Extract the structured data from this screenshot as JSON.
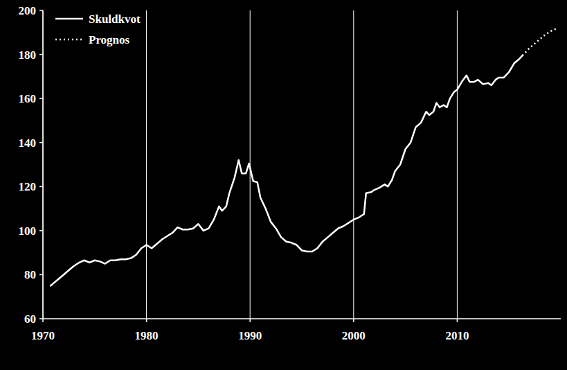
{
  "chart_data": {
    "type": "line",
    "x": [
      1970.75,
      1971,
      1971.5,
      1972,
      1972.5,
      1973,
      1973.5,
      1974,
      1974.5,
      1975,
      1975.5,
      1976,
      1976.5,
      1977,
      1977.5,
      1978,
      1978.5,
      1979,
      1979.5,
      1980,
      1980.5,
      1981,
      1981.5,
      1982,
      1982.5,
      1983,
      1983.5,
      1984,
      1984.5,
      1985,
      1985.5,
      1986,
      1986.5,
      1987,
      1987.3,
      1987.7,
      1988,
      1988.5,
      1988.9,
      1989.2,
      1989.6,
      1989.9,
      1990.3,
      1990.7,
      1991,
      1991.5,
      1992,
      1992.5,
      1993,
      1993.5,
      1994,
      1994.5,
      1995,
      1995.5,
      1996,
      1996.5,
      1997,
      1997.5,
      1998,
      1998.5,
      1999,
      1999.5,
      2000,
      2000.5,
      2001,
      2001.2,
      2001.7,
      2002,
      2002.5,
      2003,
      2003.3,
      2003.7,
      2004,
      2004.5,
      2005,
      2005.5,
      2006,
      2006.5,
      2007,
      2007.3,
      2007.7,
      2008,
      2008.3,
      2008.7,
      2009,
      2009.3,
      2009.7,
      2010,
      2010.5,
      2010.9,
      2011.2,
      2011.6,
      2012,
      2012.5,
      2013,
      2013.3,
      2013.7,
      2014,
      2014.5,
      2015,
      2015.5,
      2016,
      2016.3,
      2017,
      2017.5,
      2018,
      2018.5,
      2019,
      2019.7
    ],
    "series": [
      {
        "name": "Skuldkvot",
        "color": "#ffffff",
        "line_style": "solid",
        "values": [
          75,
          76,
          78,
          80,
          82,
          84,
          85.5,
          86.5,
          85.5,
          86.5,
          86,
          85,
          86.5,
          86.5,
          87,
          87,
          87.5,
          89,
          92,
          93.5,
          92,
          94,
          96,
          97.5,
          99,
          101.5,
          100.5,
          100.5,
          101,
          103,
          100,
          101,
          105,
          111,
          109,
          111,
          117,
          124,
          132,
          126,
          126,
          130.5,
          122.5,
          122,
          115,
          110,
          104,
          101,
          97,
          95,
          94.5,
          93.5,
          91,
          90.5,
          90.5,
          92,
          95,
          97,
          99,
          101,
          102,
          103.5,
          105,
          106,
          107.5,
          117,
          117.5,
          118.5,
          119.5,
          121,
          120,
          123,
          127,
          130,
          137,
          140,
          147,
          149,
          154,
          152.5,
          154,
          158,
          156,
          157,
          156,
          160,
          163,
          164,
          168,
          170.5,
          167.5,
          167.5,
          168.5,
          166.5,
          167,
          166,
          168.5,
          169.5,
          169.5,
          172,
          176,
          178,
          179.5,
          null,
          null,
          null,
          null,
          null,
          null
        ]
      },
      {
        "name": "Prognos",
        "color": "#ffffff",
        "line_style": "dotted",
        "values": [
          null,
          null,
          null,
          null,
          null,
          null,
          null,
          null,
          null,
          null,
          null,
          null,
          null,
          null,
          null,
          null,
          null,
          null,
          null,
          null,
          null,
          null,
          null,
          null,
          null,
          null,
          null,
          null,
          null,
          null,
          null,
          null,
          null,
          null,
          null,
          null,
          null,
          null,
          null,
          null,
          null,
          null,
          null,
          null,
          null,
          null,
          null,
          null,
          null,
          null,
          null,
          null,
          null,
          null,
          null,
          null,
          null,
          null,
          null,
          null,
          null,
          null,
          null,
          null,
          null,
          null,
          null,
          null,
          null,
          null,
          null,
          null,
          null,
          null,
          null,
          null,
          null,
          null,
          null,
          null,
          null,
          null,
          null,
          null,
          null,
          null,
          null,
          null,
          null,
          null,
          null,
          null,
          null,
          null,
          null,
          null,
          null,
          null,
          null,
          null,
          null,
          null,
          179.5,
          183,
          185,
          187,
          189,
          190.5,
          192
        ]
      }
    ],
    "xlim": [
      1970,
      2020
    ],
    "xticks": [
      1970,
      1980,
      1990,
      2000,
      2010
    ],
    "ylim": [
      60,
      200
    ],
    "yticks": [
      60,
      80,
      100,
      120,
      140,
      160,
      180,
      200
    ],
    "grid": "x",
    "legend": "upper left"
  }
}
